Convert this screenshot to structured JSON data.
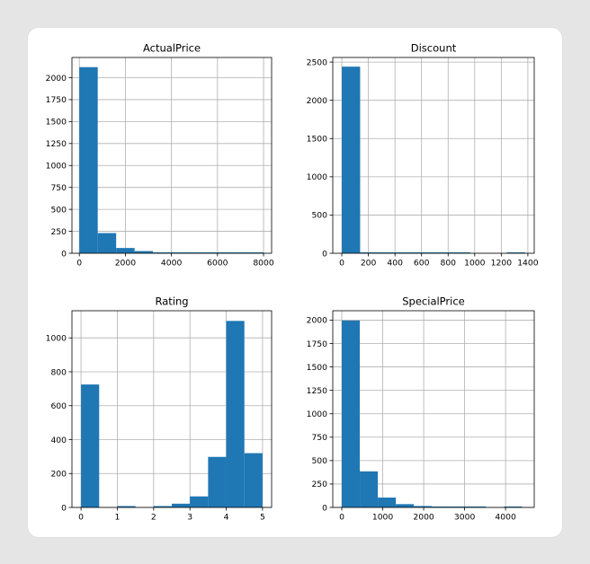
{
  "chart_data": [
    {
      "type": "bar",
      "title": "ActualPrice",
      "xlabel": "",
      "ylabel": "",
      "grid": true,
      "xlim": [
        -320,
        8350
      ],
      "ylim": [
        0,
        2230
      ],
      "xticks": [
        0,
        2000,
        4000,
        6000,
        8000
      ],
      "xtick_labels": [
        "0",
        "2000",
        "4000",
        "6000",
        "8000"
      ],
      "yticks": [
        0,
        250,
        500,
        750,
        1000,
        1250,
        1500,
        1750,
        2000
      ],
      "ytick_labels": [
        "0",
        "250",
        "500",
        "750",
        "1000",
        "1250",
        "1500",
        "1750",
        "2000"
      ],
      "bin_edges": [
        0,
        800,
        1600,
        2400,
        3200,
        4000,
        4800,
        5600,
        6400,
        7200,
        8000
      ],
      "values": [
        2120,
        230,
        60,
        25,
        10,
        5,
        4,
        3,
        2,
        2
      ],
      "color": "#1f77b4"
    },
    {
      "type": "bar",
      "title": "Discount",
      "xlabel": "",
      "ylabel": "",
      "grid": true,
      "xlim": [
        -68,
        1448
      ],
      "ylim": [
        0,
        2560
      ],
      "xticks": [
        0,
        200,
        400,
        600,
        800,
        1000,
        1200,
        1400
      ],
      "xtick_labels": [
        "0",
        "200",
        "400",
        "600",
        "800",
        "1000",
        "1200",
        "1400"
      ],
      "yticks": [
        0,
        500,
        1000,
        1500,
        2000,
        2500
      ],
      "ytick_labels": [
        "0",
        "500",
        "1000",
        "1500",
        "2000",
        "2500"
      ],
      "bin_edges": [
        0,
        138,
        276,
        414,
        552,
        690,
        828,
        966,
        1104,
        1242,
        1380
      ],
      "values": [
        2440,
        6,
        4,
        3,
        2,
        2,
        1,
        0,
        0,
        3
      ],
      "color": "#1f77b4"
    },
    {
      "type": "bar",
      "title": "Rating",
      "xlabel": "",
      "ylabel": "",
      "grid": true,
      "xlim": [
        -0.25,
        5.25
      ],
      "ylim": [
        0,
        1160
      ],
      "xticks": [
        0,
        1,
        2,
        3,
        4,
        5
      ],
      "xtick_labels": [
        "0",
        "1",
        "2",
        "3",
        "4",
        "5"
      ],
      "yticks": [
        0,
        200,
        400,
        600,
        800,
        1000
      ],
      "ytick_labels": [
        "0",
        "200",
        "400",
        "600",
        "800",
        "1000"
      ],
      "bin_edges": [
        0,
        0.5,
        1,
        1.5,
        2,
        2.5,
        3,
        3.5,
        4,
        4.5,
        5
      ],
      "values": [
        725,
        0,
        8,
        0,
        8,
        22,
        65,
        298,
        1100,
        320
      ],
      "color": "#1f77b4"
    },
    {
      "type": "bar",
      "title": "SpecialPrice",
      "xlabel": "",
      "ylabel": "",
      "grid": true,
      "xlim": [
        -220,
        4700
      ],
      "ylim": [
        0,
        2100
      ],
      "xticks": [
        0,
        1000,
        2000,
        3000,
        4000
      ],
      "xtick_labels": [
        "0",
        "1000",
        "2000",
        "3000",
        "4000"
      ],
      "yticks": [
        0,
        250,
        500,
        750,
        1000,
        1250,
        1500,
        1750,
        2000
      ],
      "ytick_labels": [
        "0",
        "250",
        "500",
        "750",
        "1000",
        "1250",
        "1500",
        "1750",
        "2000"
      ],
      "bin_edges": [
        0,
        440,
        880,
        1320,
        1760,
        2200,
        2640,
        3080,
        3520,
        3960,
        4400
      ],
      "values": [
        1995,
        385,
        105,
        35,
        15,
        8,
        5,
        3,
        0,
        2
      ],
      "color": "#1f77b4"
    }
  ]
}
